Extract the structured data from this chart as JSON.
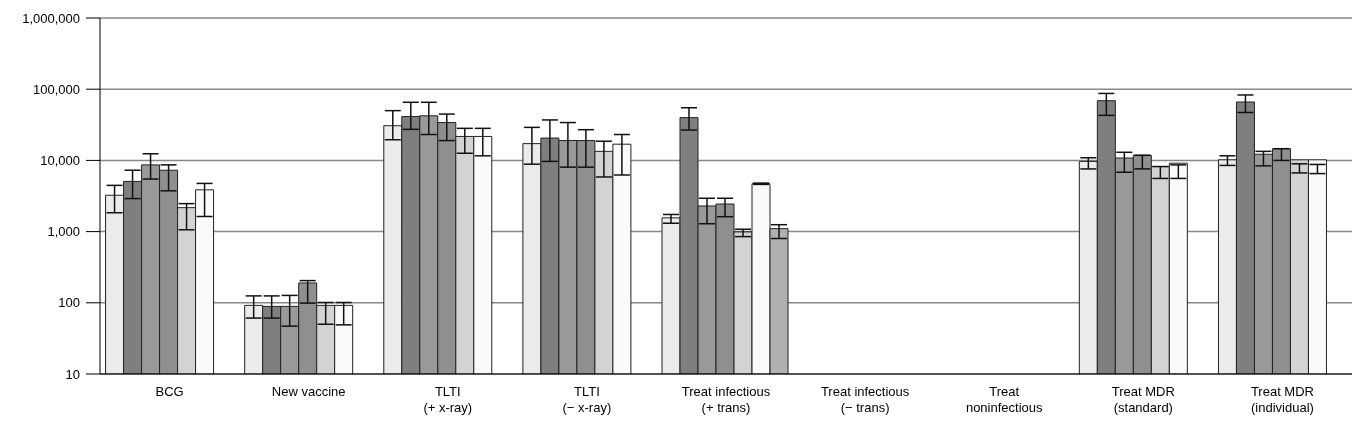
{
  "chart_data": {
    "type": "bar",
    "log": true,
    "grid": "y",
    "legend": false,
    "categories": [
      "BCG",
      "New vaccine",
      "TLTI\n(+ x-ray)",
      "TLTI\n(− x-ray)",
      "Treat infectious\n(+ trans)",
      "Treat infectious\n(− trans)",
      "Treat\nnoninfectious",
      "Treat MDR\n(standard)",
      "Treat MDR\n(individual)"
    ],
    "ylim": [
      10,
      1000000
    ],
    "yticks": [
      {
        "value": 10,
        "label": "10"
      },
      {
        "value": 100,
        "label": "100"
      },
      {
        "value": 1000,
        "label": "1,000"
      },
      {
        "value": 10000,
        "label": "10,000"
      },
      {
        "value": 100000,
        "label": "100,000"
      },
      {
        "value": 1000000,
        "label": "1,000,000"
      }
    ],
    "series": [
      {
        "color": "#ebebeb",
        "values": [
          3240,
          92,
          30700,
          17200,
          1560,
          null,
          null,
          9680,
          10200
        ],
        "errors": [
          [
            1840,
            4460
          ],
          [
            61,
            125
          ],
          [
            19500,
            50000
          ],
          [
            8850,
            29100
          ],
          [
            1310,
            1740
          ],
          null,
          null,
          [
            7590,
            10900
          ],
          [
            8500,
            11600
          ]
        ]
      },
      {
        "color": "#7f7f7f",
        "values": [
          5070,
          89,
          41400,
          20600,
          39900,
          null,
          null,
          69000,
          66100
        ],
        "errors": [
          [
            2910,
            7280
          ],
          [
            61,
            125
          ],
          [
            27300,
            65500
          ],
          [
            9680,
            37000
          ],
          [
            26700,
            54900
          ],
          null,
          null,
          [
            42900,
            87200
          ],
          [
            47100,
            83000
          ]
        ]
      },
      {
        "color": "#999999",
        "values": [
          8650,
          89,
          42300,
          19000,
          2290,
          null,
          null,
          10800,
          12200
        ],
        "errors": [
          [
            5470,
            12400
          ],
          [
            47,
            127
          ],
          [
            23100,
            65500
          ],
          [
            8040,
            34000
          ],
          [
            1290,
            2940
          ],
          null,
          null,
          [
            6820,
            13000
          ],
          [
            8380,
            13400
          ]
        ]
      },
      {
        "color": "#8f8f8f",
        "values": [
          7280,
          190,
          34000,
          19000,
          2440,
          null,
          null,
          11800,
          14600
        ],
        "errors": [
          [
            3740,
            8650
          ],
          [
            99,
            205
          ],
          [
            19000,
            44700
          ],
          [
            8040,
            27000
          ],
          [
            1620,
            2940
          ],
          null,
          null,
          [
            7600,
            11800
          ],
          [
            10000,
            14600
          ]
        ]
      },
      {
        "color": "#d3d3d3",
        "values": [
          2170,
          92,
          21700,
          13400,
          990,
          null,
          null,
          8200,
          10200
        ],
        "errors": [
          [
            1060,
            2470
          ],
          [
            50,
            101
          ],
          [
            12600,
            28200
          ],
          [
            5850,
            18600
          ],
          [
            850,
            1080
          ],
          null,
          null,
          [
            5580,
            8200
          ],
          [
            6670,
            8950
          ]
        ]
      },
      {
        "color": "#fafafa",
        "values": [
          3860,
          92,
          21700,
          16900,
          4700,
          null,
          null,
          9120,
          10200
        ],
        "errors": [
          [
            1630,
            4750
          ],
          [
            49,
            101
          ],
          [
            11600,
            28200
          ],
          [
            6240,
            23100
          ],
          [
            4600,
            4800
          ],
          null,
          null,
          [
            5580,
            8650
          ],
          [
            6530,
            8770
          ]
        ]
      },
      {
        "color": "#b0b0b0",
        "values": [
          null,
          null,
          null,
          null,
          1100,
          null,
          null,
          null,
          null
        ],
        "errors": [
          null,
          null,
          null,
          null,
          [
            800,
            1250
          ],
          null,
          null,
          null,
          null
        ]
      }
    ]
  }
}
